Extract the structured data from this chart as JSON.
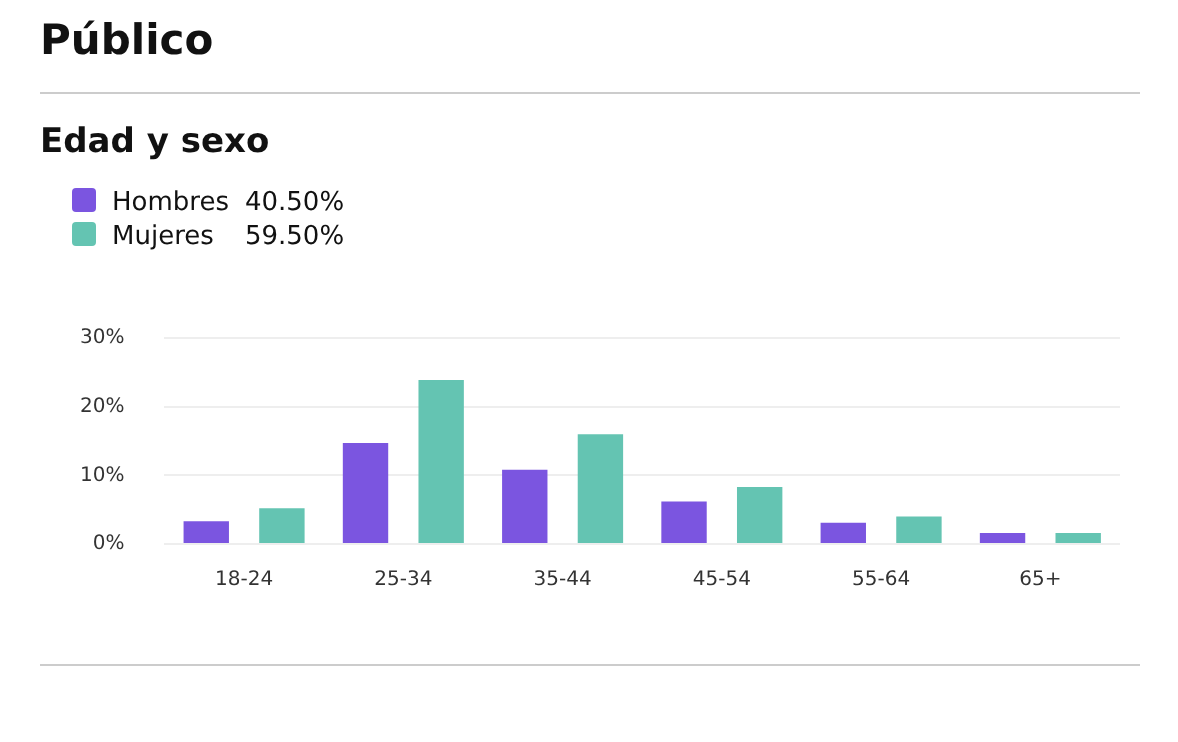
{
  "chart_data": {
    "type": "bar",
    "title": "Público",
    "subtitle": "Edad y sexo",
    "categories": [
      "18-24",
      "25-34",
      "35-44",
      "45-54",
      "55-64",
      "65+"
    ],
    "series": [
      {
        "name": "Hombres",
        "color": "#7b55e0",
        "values": [
          3.3,
          14.7,
          10.8,
          6.2,
          3.1,
          1.6
        ]
      },
      {
        "name": "Mujeres",
        "color": "#64c4b2",
        "values": [
          5.2,
          23.9,
          16.0,
          8.3,
          4.0,
          1.6
        ]
      }
    ],
    "annotations": [
      "40.50%",
      "59.50%"
    ],
    "ylim": [
      0,
      30
    ],
    "yticks": [
      {
        "value": 0,
        "label": "0%"
      },
      {
        "value": 10,
        "label": "10%"
      },
      {
        "value": 20,
        "label": "20%"
      },
      {
        "value": 30,
        "label": "30%"
      }
    ],
    "grid": "y",
    "legend": "top left"
  }
}
